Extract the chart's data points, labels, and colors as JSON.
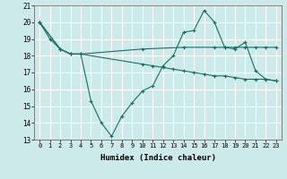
{
  "xlabel": "Humidex (Indice chaleur)",
  "bg_color": "#cceaea",
  "grid_color": "#ffffff",
  "line_color": "#1a6e60",
  "xlim": [
    -0.5,
    23.5
  ],
  "ylim": [
    13,
    21
  ],
  "xticks": [
    0,
    1,
    2,
    3,
    4,
    5,
    6,
    7,
    8,
    9,
    10,
    11,
    12,
    13,
    14,
    15,
    16,
    17,
    18,
    19,
    20,
    21,
    22,
    23
  ],
  "yticks": [
    13,
    14,
    15,
    16,
    17,
    18,
    19,
    20,
    21
  ],
  "line1_x": [
    0,
    1,
    2,
    3,
    4,
    5,
    6,
    7,
    8,
    9,
    10,
    11,
    12,
    13,
    14,
    15,
    16,
    17,
    18,
    19,
    20,
    21,
    22,
    23
  ],
  "line1_y": [
    20.0,
    19.0,
    18.4,
    18.1,
    18.1,
    15.3,
    14.0,
    13.2,
    14.4,
    15.2,
    15.9,
    16.2,
    17.4,
    18.0,
    19.4,
    19.5,
    20.7,
    20.0,
    18.5,
    18.4,
    18.8,
    17.1,
    16.6,
    16.5
  ],
  "line2_x": [
    0,
    2,
    3,
    4,
    10,
    14,
    17,
    18,
    19,
    20,
    21,
    22,
    23
  ],
  "line2_y": [
    20.0,
    18.4,
    18.1,
    18.1,
    18.4,
    18.5,
    18.5,
    18.5,
    18.5,
    18.5,
    18.5,
    18.5,
    18.5
  ],
  "line3_x": [
    0,
    2,
    3,
    4,
    10,
    11,
    12,
    13,
    14,
    15,
    16,
    17,
    18,
    19,
    20,
    21,
    22,
    23
  ],
  "line3_y": [
    20.0,
    18.4,
    18.1,
    18.1,
    17.5,
    17.4,
    17.3,
    17.2,
    17.1,
    17.0,
    16.9,
    16.8,
    16.8,
    16.7,
    16.6,
    16.6,
    16.6,
    16.5
  ]
}
